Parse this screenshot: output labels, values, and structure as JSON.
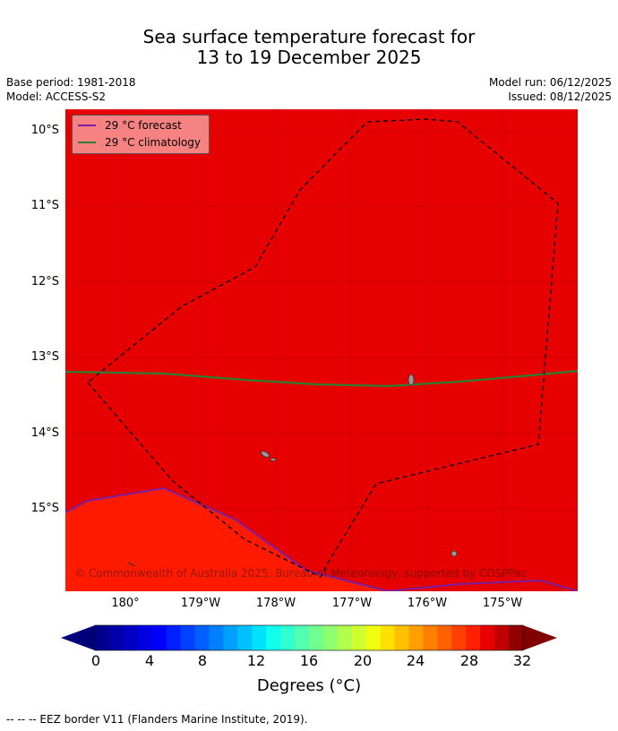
{
  "title_line1": "Sea surface temperature forecast for",
  "title_line2": "13 to 19 December 2025",
  "meta": {
    "base_period": "Base period: 1981-2018",
    "model": "Model: ACCESS-S2",
    "model_run": "Model run: 06/12/2025",
    "issued": "Issued: 08/12/2025"
  },
  "legend": {
    "forecast_label": "29 °C  forecast",
    "forecast_color": "#7b1fa2",
    "climatology_label": "29 °C  climatology",
    "climatology_color": "#2e7d32"
  },
  "map": {
    "background_color": "#e60000",
    "warm_patch_color": "#ff1a00",
    "lat_labels": [
      "10°S",
      "11°S",
      "12°S",
      "13°S",
      "14°S",
      "15°S"
    ],
    "lon_labels": [
      "180°",
      "179°W",
      "178°W",
      "177°W",
      "176°W",
      "175°W"
    ],
    "copyright": "© Commonwealth of Australia 2025, Bureau of Meteorology, supported by COSPPac"
  },
  "colorbar": {
    "ticks": [
      "0",
      "4",
      "8",
      "12",
      "16",
      "20",
      "24",
      "28",
      "32"
    ],
    "label": "Degrees (°C)",
    "colors": [
      "#00008f",
      "#0000a8",
      "#0000c4",
      "#0000e0",
      "#0000ff",
      "#0020ff",
      "#0040ff",
      "#0060ff",
      "#0080ff",
      "#00a0ff",
      "#00c0ff",
      "#00e0ff",
      "#10ffef",
      "#30ffcf",
      "#50ffaf",
      "#70ff8f",
      "#90ff6f",
      "#b0ff4f",
      "#d0ff2f",
      "#f0ff0f",
      "#ffe000",
      "#ffc000",
      "#ffa000",
      "#ff8000",
      "#ff6000",
      "#ff4000",
      "#ff2000",
      "#e60000",
      "#c00000",
      "#900000"
    ],
    "low_extend_color": "#00007a",
    "high_extend_color": "#800000"
  },
  "footnote": "--  --  -- EEZ border V11 (Flanders Marine Institute, 2019)."
}
